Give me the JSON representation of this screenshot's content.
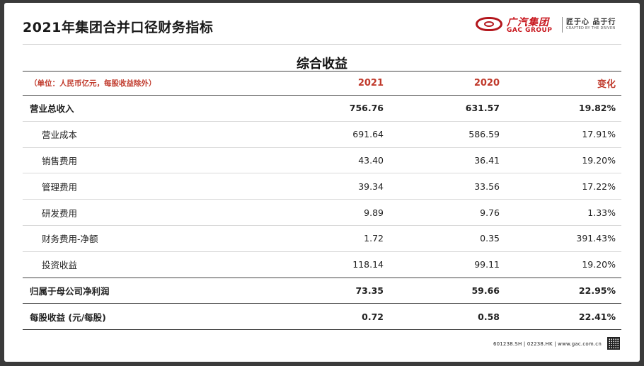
{
  "page": {
    "title": "2021年集团合并口径财务指标",
    "section_title": "综合收益",
    "footer": "601238.SH | 02238.HK | www.gac.com.cn"
  },
  "logo": {
    "name_cn": "广汽集团",
    "name_en": "GAC GROUP",
    "slogan": "匠于心 品于行",
    "slogan_en": "CRAFTED BY THE DRIVEN"
  },
  "colors": {
    "header_red": "#c0392b",
    "brand_red": "#c8161d"
  },
  "table": {
    "headers": {
      "label": "（单位：人民币亿元，每股收益除外）",
      "y2021": "2021",
      "y2020": "2020",
      "change": "变化"
    },
    "rows": [
      {
        "label": "营业总收入",
        "v2021": "756.76",
        "v2020": "631.57",
        "change": "19.82%"
      },
      {
        "label": "营业成本",
        "v2021": "691.64",
        "v2020": "586.59",
        "change": "17.91%"
      },
      {
        "label": "销售费用",
        "v2021": "43.40",
        "v2020": "36.41",
        "change": "19.20%"
      },
      {
        "label": "管理费用",
        "v2021": "39.34",
        "v2020": "33.56",
        "change": "17.22%"
      },
      {
        "label": "研发费用",
        "v2021": "9.89",
        "v2020": "9.76",
        "change": "1.33%"
      },
      {
        "label": "财务费用-净额",
        "v2021": "1.72",
        "v2020": "0.35",
        "change": "391.43%"
      },
      {
        "label": "投资收益",
        "v2021": "118.14",
        "v2020": "99.11",
        "change": "19.20%"
      },
      {
        "label": "归属于母公司净利润",
        "v2021": "73.35",
        "v2020": "59.66",
        "change": "22.95%"
      },
      {
        "label": "每股收益 (元/每股)",
        "v2021": "0.72",
        "v2020": "0.58",
        "change": "22.41%"
      }
    ]
  }
}
